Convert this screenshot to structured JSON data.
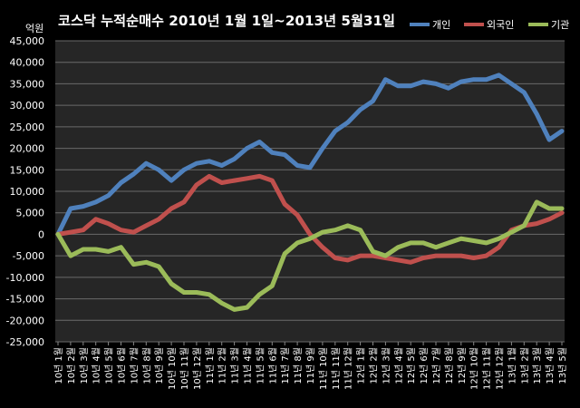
{
  "chart_data": {
    "type": "line",
    "title": "코스닥  누적순매수 2010년 1월 1일~2013년 5월31일",
    "ylabel": "억원",
    "xlabel": "",
    "ylim": [
      -25000,
      45000
    ],
    "y_ticks": [
      "45,000",
      "40,000",
      "35,000",
      "30,000",
      "25,000",
      "20,000",
      "15,000",
      "10,000",
      "5,000",
      "0",
      "-5,000",
      "-10,000",
      "-15,000",
      "-20,000",
      "-25,000"
    ],
    "grid": true,
    "legend_position": "top-right",
    "categories": [
      "10년 1월",
      "10년 2월",
      "10년 3월",
      "10년 4월",
      "10년 5월",
      "10년 6월",
      "10년 7월",
      "10년 8월",
      "10년 9월",
      "10년 10월",
      "10년 11월",
      "10년 12월",
      "11년 1월",
      "11년 2월",
      "11년 3월",
      "11년 4월",
      "11년 5월",
      "11년 6월",
      "11년 7월",
      "11년 8월",
      "11년 9월",
      "11년 10월",
      "11년 11월",
      "11년 12월",
      "12년 1월",
      "12년 2월",
      "12년 3월",
      "12년 4월",
      "12년 5월",
      "12년 6월",
      "12년 7월",
      "12년 8월",
      "12년 9월",
      "12년 10월",
      "12년 11월",
      "12년 12월",
      "13년 1월",
      "13년 2월",
      "13년 3월",
      "13년 4월",
      "13년 5월"
    ],
    "series": [
      {
        "name": "개인",
        "color": "#4F81BD",
        "values": [
          0,
          6000,
          6500,
          7500,
          9000,
          12000,
          14000,
          16500,
          15000,
          12500,
          15000,
          16500,
          17000,
          16000,
          17500,
          20000,
          21500,
          19000,
          18500,
          16000,
          15500,
          20000,
          24000,
          26000,
          29000,
          31000,
          36000,
          34500,
          34500,
          35500,
          35000,
          34000,
          35500,
          36000,
          36000,
          37000,
          35000,
          33000,
          28000,
          22000,
          24000
        ]
      },
      {
        "name": "외국인",
        "color": "#C0504D",
        "values": [
          0,
          500,
          1000,
          3500,
          2500,
          1000,
          500,
          2000,
          3500,
          6000,
          7500,
          11500,
          13500,
          12000,
          12500,
          13000,
          13500,
          12500,
          7000,
          4500,
          0,
          -3000,
          -5500,
          -6000,
          -5000,
          -5000,
          -5500,
          -6000,
          -6500,
          -5500,
          -5000,
          -5000,
          -5000,
          -5500,
          -5000,
          -3000,
          1000,
          2000,
          2500,
          3500,
          5000
        ]
      },
      {
        "name": "기관",
        "color": "#9BBB59",
        "values": [
          0,
          -5000,
          -3500,
          -3500,
          -4000,
          -3000,
          -7000,
          -6500,
          -7500,
          -11500,
          -13500,
          -13500,
          -14000,
          -16000,
          -17500,
          -17000,
          -14000,
          -12000,
          -4500,
          -2000,
          -1000,
          500,
          1000,
          2000,
          1000,
          -4000,
          -5000,
          -3000,
          -2000,
          -2000,
          -3000,
          -2000,
          -1000,
          -1500,
          -2000,
          -1000,
          500,
          2000,
          7500,
          6000,
          6000
        ]
      }
    ]
  }
}
